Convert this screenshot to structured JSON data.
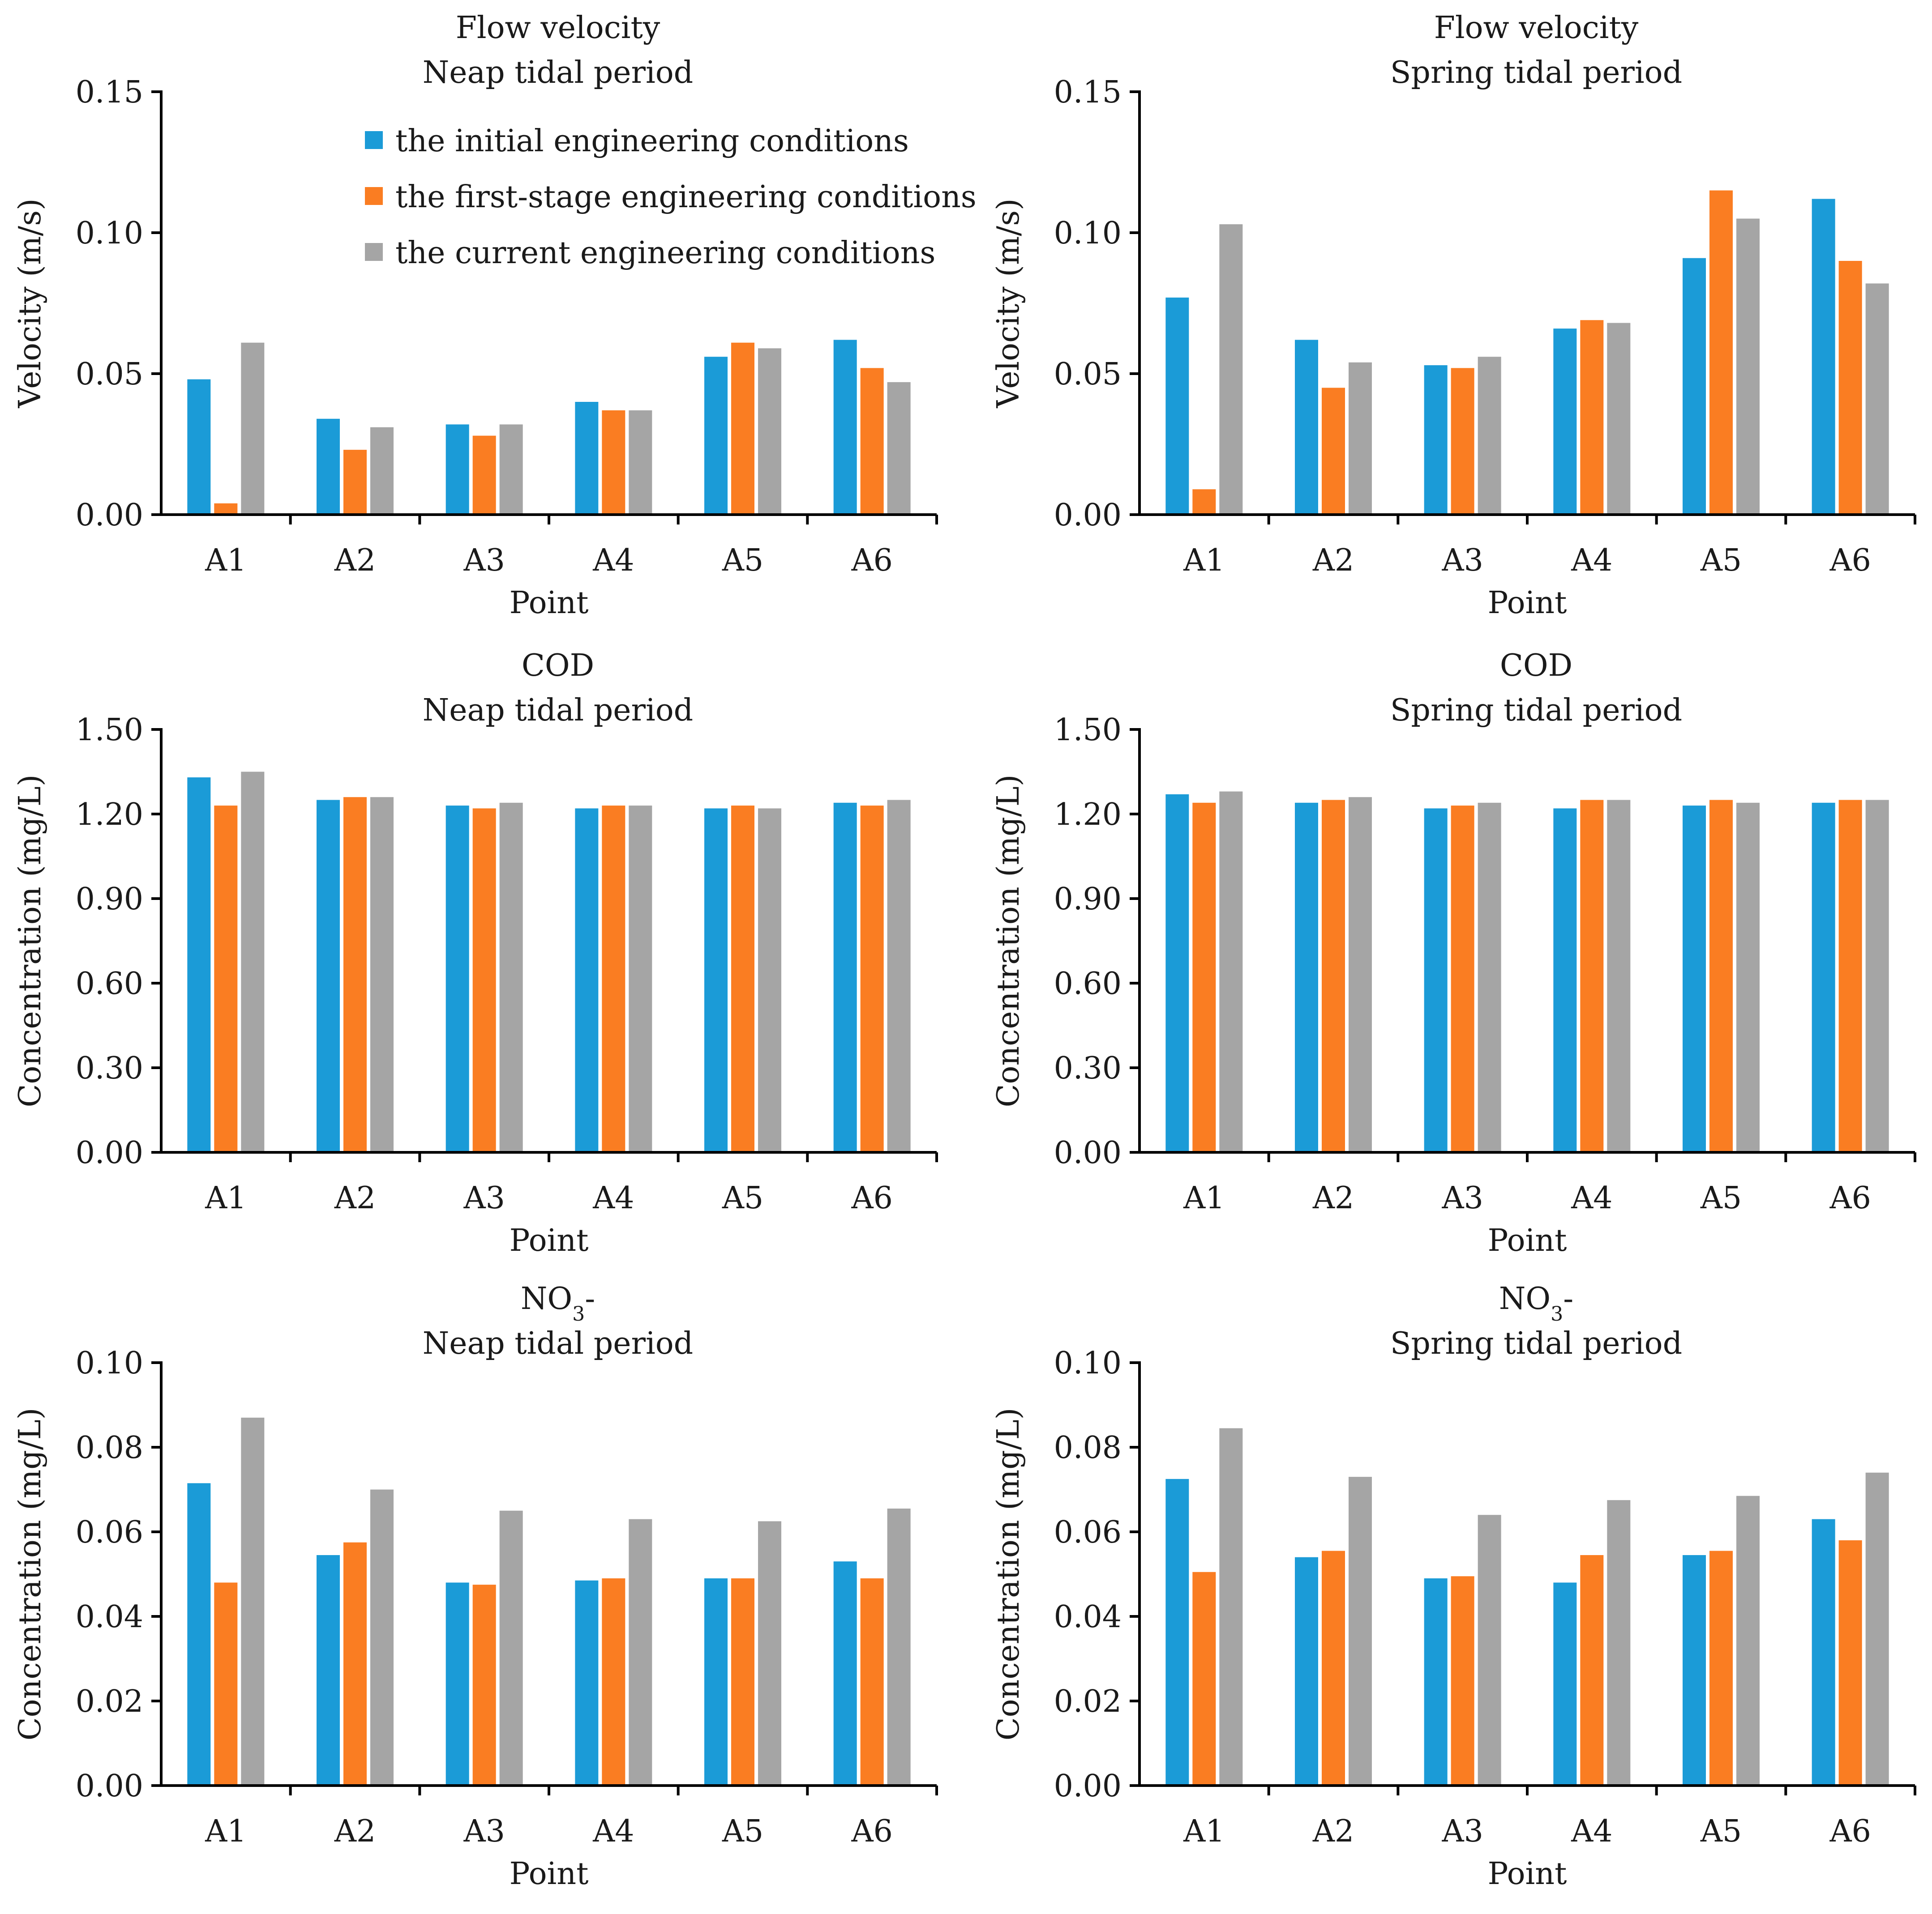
{
  "colors": {
    "initial": "#1B9BD7",
    "first_stage": "#FA7D22",
    "current": "#A5A5A5",
    "axis": "#000000"
  },
  "legend": {
    "entries": [
      "the initial engineering conditions",
      "the first-stage engineering conditions",
      "the current engineering conditions"
    ]
  },
  "chart_data": [
    {
      "type": "bar",
      "title": "Flow velocity",
      "subtitle": "Neap tidal period",
      "xlabel": "Point",
      "ylabel": "Velocity (m/s)",
      "ylim": [
        0,
        0.15
      ],
      "yticks": [
        "0.00",
        "0.05",
        "0.10",
        "0.15"
      ],
      "categories": [
        "A1",
        "A2",
        "A3",
        "A4",
        "A5",
        "A6"
      ],
      "legend_position": "top-right",
      "series": [
        {
          "name": "the initial engineering conditions",
          "values": [
            0.048,
            0.034,
            0.032,
            0.04,
            0.056,
            0.062
          ]
        },
        {
          "name": "the first-stage engineering conditions",
          "values": [
            0.004,
            0.023,
            0.028,
            0.037,
            0.061,
            0.052
          ]
        },
        {
          "name": "the current engineering conditions",
          "values": [
            0.061,
            0.031,
            0.032,
            0.037,
            0.059,
            0.047
          ]
        }
      ]
    },
    {
      "type": "bar",
      "title": "Flow velocity",
      "subtitle": "Spring tidal period",
      "xlabel": "Point",
      "ylabel": "Velocity (m/s)",
      "ylim": [
        0,
        0.15
      ],
      "yticks": [
        "0.00",
        "0.05",
        "0.10",
        "0.15"
      ],
      "categories": [
        "A1",
        "A2",
        "A3",
        "A4",
        "A5",
        "A6"
      ],
      "series": [
        {
          "name": "the initial engineering conditions",
          "values": [
            0.077,
            0.062,
            0.053,
            0.066,
            0.091,
            0.112
          ]
        },
        {
          "name": "the first-stage engineering conditions",
          "values": [
            0.009,
            0.045,
            0.052,
            0.069,
            0.115,
            0.09
          ]
        },
        {
          "name": "the current engineering conditions",
          "values": [
            0.103,
            0.054,
            0.056,
            0.068,
            0.105,
            0.082
          ]
        }
      ]
    },
    {
      "type": "bar",
      "title": "COD",
      "subtitle": "Neap tidal period",
      "xlabel": "Point",
      "ylabel": "Concentration (mg/L)",
      "ylim": [
        0,
        1.5
      ],
      "yticks": [
        "0.00",
        "0.30",
        "0.60",
        "0.90",
        "1.20",
        "1.50"
      ],
      "categories": [
        "A1",
        "A2",
        "A3",
        "A4",
        "A5",
        "A6"
      ],
      "series": [
        {
          "name": "the initial engineering conditions",
          "values": [
            1.33,
            1.25,
            1.23,
            1.22,
            1.22,
            1.24
          ]
        },
        {
          "name": "the first-stage engineering conditions",
          "values": [
            1.23,
            1.26,
            1.22,
            1.23,
            1.23,
            1.23
          ]
        },
        {
          "name": "the current engineering conditions",
          "values": [
            1.35,
            1.26,
            1.24,
            1.23,
            1.22,
            1.25
          ]
        }
      ]
    },
    {
      "type": "bar",
      "title": "COD",
      "subtitle": "Spring tidal period",
      "xlabel": "Point",
      "ylabel": "Concentration (mg/L)",
      "ylim": [
        0,
        1.5
      ],
      "yticks": [
        "0.00",
        "0.30",
        "0.60",
        "0.90",
        "1.20",
        "1.50"
      ],
      "categories": [
        "A1",
        "A2",
        "A3",
        "A4",
        "A5",
        "A6"
      ],
      "series": [
        {
          "name": "the initial engineering conditions",
          "values": [
            1.27,
            1.24,
            1.22,
            1.22,
            1.23,
            1.24
          ]
        },
        {
          "name": "the first-stage engineering conditions",
          "values": [
            1.24,
            1.25,
            1.23,
            1.25,
            1.25,
            1.25
          ]
        },
        {
          "name": "the current engineering conditions",
          "values": [
            1.28,
            1.26,
            1.24,
            1.25,
            1.24,
            1.25
          ]
        }
      ]
    },
    {
      "type": "bar",
      "title": "NO",
      "title_sub": "3",
      "title_suffix": "-",
      "subtitle": "Neap tidal period",
      "xlabel": "Point",
      "ylabel": "Concentration (mg/L)",
      "ylim": [
        0,
        0.1
      ],
      "yticks": [
        "0.00",
        "0.02",
        "0.04",
        "0.06",
        "0.08",
        "0.10"
      ],
      "categories": [
        "A1",
        "A2",
        "A3",
        "A4",
        "A5",
        "A6"
      ],
      "series": [
        {
          "name": "the initial engineering conditions",
          "values": [
            0.0715,
            0.0545,
            0.048,
            0.0485,
            0.049,
            0.053
          ]
        },
        {
          "name": "the first-stage engineering conditions",
          "values": [
            0.048,
            0.0575,
            0.0475,
            0.049,
            0.049,
            0.049
          ]
        },
        {
          "name": "the current engineering conditions",
          "values": [
            0.087,
            0.07,
            0.065,
            0.063,
            0.0625,
            0.0655
          ]
        }
      ]
    },
    {
      "type": "bar",
      "title": "NO",
      "title_sub": "3",
      "title_suffix": "-",
      "subtitle": "Spring tidal period",
      "xlabel": "Point",
      "ylabel": "Concentration (mg/L)",
      "ylim": [
        0,
        0.1
      ],
      "yticks": [
        "0.00",
        "0.02",
        "0.04",
        "0.06",
        "0.08",
        "0.10"
      ],
      "categories": [
        "A1",
        "A2",
        "A3",
        "A4",
        "A5",
        "A6"
      ],
      "series": [
        {
          "name": "the initial engineering conditions",
          "values": [
            0.0725,
            0.054,
            0.049,
            0.048,
            0.0545,
            0.063
          ]
        },
        {
          "name": "the first-stage engineering conditions",
          "values": [
            0.0505,
            0.0555,
            0.0495,
            0.0545,
            0.0555,
            0.058
          ]
        },
        {
          "name": "the current engineering conditions",
          "values": [
            0.0845,
            0.073,
            0.064,
            0.0675,
            0.0685,
            0.074
          ]
        }
      ]
    }
  ]
}
